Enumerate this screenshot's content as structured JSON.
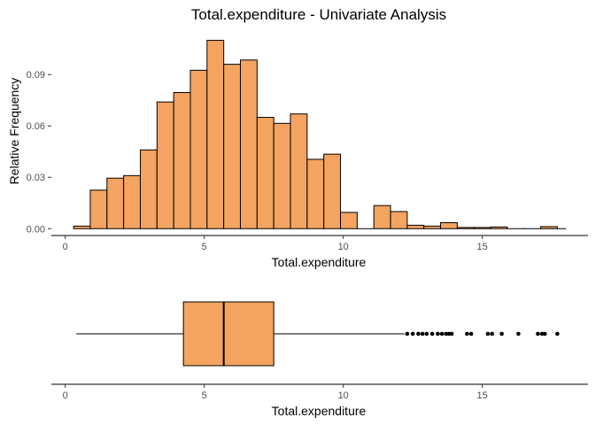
{
  "colors": {
    "fill": "#F4A460",
    "stroke": "#000000",
    "tick_text": "#4d4d4d",
    "axis_line": "#000000",
    "background": "#ffffff"
  },
  "chart_data": [
    {
      "type": "histogram",
      "title": "Total.expenditure - Univariate Analysis",
      "xlabel": "Total.expenditure",
      "ylabel": "Relative Frequency",
      "xlim": [
        -0.5,
        18.8
      ],
      "ylim": [
        -0.004,
        0.117
      ],
      "x_ticks": [
        0,
        5,
        10,
        15
      ],
      "y_ticks": [
        0.0,
        0.03,
        0.06,
        0.09
      ],
      "y_tick_labels": [
        "0.00",
        "0.03",
        "0.06",
        "0.09"
      ],
      "bin_width": 0.6,
      "bins": [
        {
          "x0": 0.3,
          "x1": 0.9,
          "value": 0.0015
        },
        {
          "x0": 0.9,
          "x1": 1.5,
          "value": 0.0225
        },
        {
          "x0": 1.5,
          "x1": 2.1,
          "value": 0.0295
        },
        {
          "x0": 2.1,
          "x1": 2.7,
          "value": 0.031
        },
        {
          "x0": 2.7,
          "x1": 3.3,
          "value": 0.046
        },
        {
          "x0": 3.3,
          "x1": 3.9,
          "value": 0.074
        },
        {
          "x0": 3.9,
          "x1": 4.5,
          "value": 0.0795
        },
        {
          "x0": 4.5,
          "x1": 5.1,
          "value": 0.0925
        },
        {
          "x0": 5.1,
          "x1": 5.7,
          "value": 0.11
        },
        {
          "x0": 5.7,
          "x1": 6.3,
          "value": 0.096
        },
        {
          "x0": 6.3,
          "x1": 6.9,
          "value": 0.0985
        },
        {
          "x0": 6.9,
          "x1": 7.5,
          "value": 0.065
        },
        {
          "x0": 7.5,
          "x1": 8.1,
          "value": 0.0615
        },
        {
          "x0": 8.1,
          "x1": 8.7,
          "value": 0.067
        },
        {
          "x0": 8.7,
          "x1": 9.3,
          "value": 0.0405
        },
        {
          "x0": 9.3,
          "x1": 9.9,
          "value": 0.0435
        },
        {
          "x0": 9.9,
          "x1": 10.5,
          "value": 0.0095
        },
        {
          "x0": 10.5,
          "x1": 11.1,
          "value": 0.0
        },
        {
          "x0": 11.1,
          "x1": 11.7,
          "value": 0.0135
        },
        {
          "x0": 11.7,
          "x1": 12.3,
          "value": 0.01
        },
        {
          "x0": 12.3,
          "x1": 12.9,
          "value": 0.002
        },
        {
          "x0": 12.9,
          "x1": 13.5,
          "value": 0.0015
        },
        {
          "x0": 13.5,
          "x1": 14.1,
          "value": 0.0035
        },
        {
          "x0": 14.1,
          "x1": 14.7,
          "value": 0.0007
        },
        {
          "x0": 14.7,
          "x1": 15.3,
          "value": 0.0007
        },
        {
          "x0": 15.3,
          "x1": 15.9,
          "value": 0.001
        },
        {
          "x0": 15.9,
          "x1": 16.5,
          "value": 0.0
        },
        {
          "x0": 16.5,
          "x1": 17.1,
          "value": 0.0
        },
        {
          "x0": 17.1,
          "x1": 17.7,
          "value": 0.0012
        },
        {
          "x0": 17.7,
          "x1": 18.0,
          "value": 0.0
        }
      ]
    },
    {
      "type": "boxplot",
      "xlabel": "Total.expenditure",
      "xlim": [
        -0.5,
        18.8
      ],
      "x_ticks": [
        0,
        5,
        10,
        15
      ],
      "whisker_low": 0.4,
      "q1": 4.25,
      "median": 5.7,
      "q3": 7.5,
      "whisker_high": 12.2,
      "outliers": [
        12.3,
        12.5,
        12.7,
        12.85,
        13.0,
        13.2,
        13.4,
        13.55,
        13.7,
        13.8,
        13.9,
        14.45,
        14.6,
        15.2,
        15.35,
        15.7,
        16.3,
        17.0,
        17.15,
        17.25,
        17.7
      ]
    }
  ]
}
